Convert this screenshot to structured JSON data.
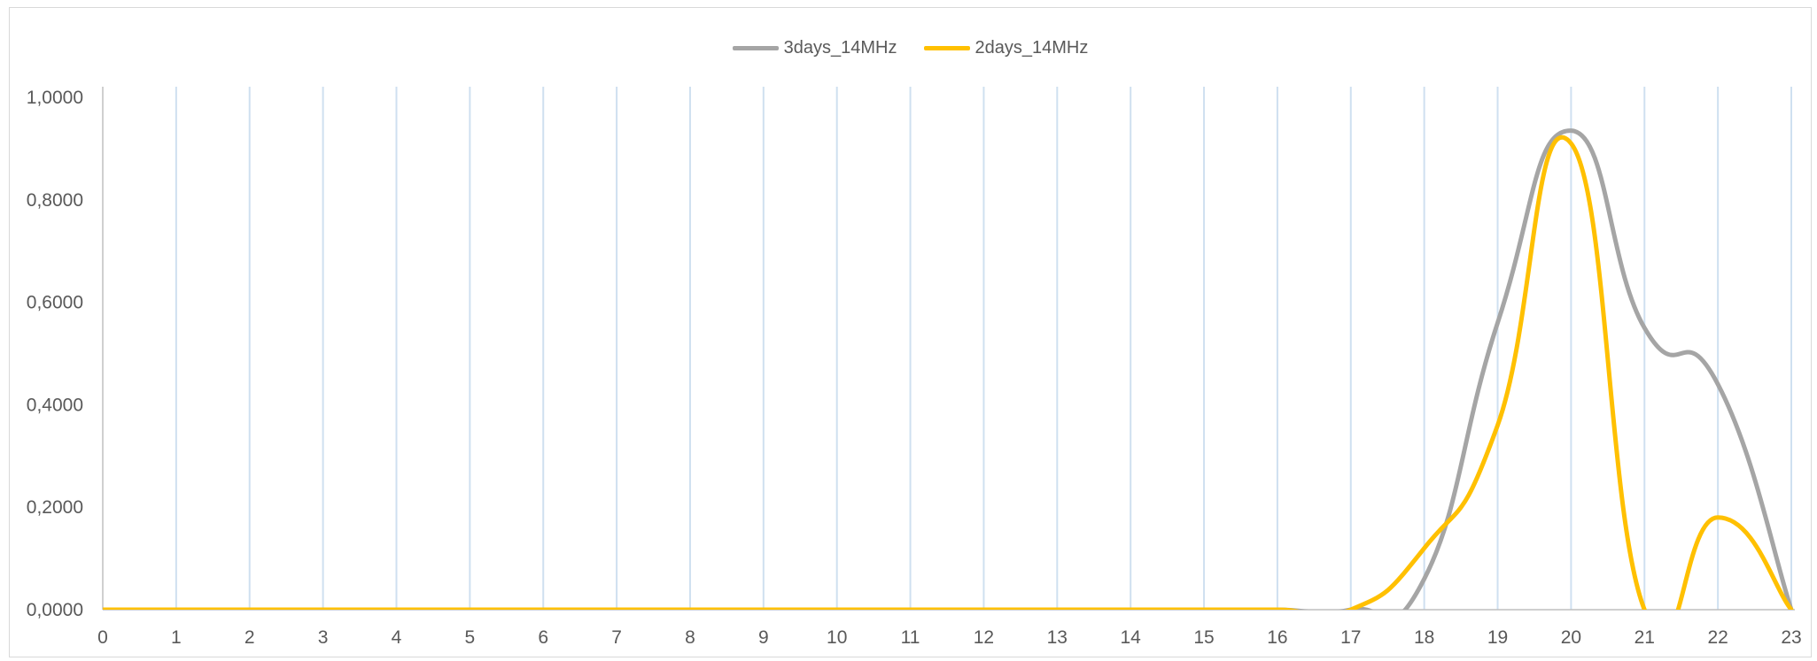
{
  "chart_data": {
    "type": "line",
    "title": "",
    "xlabel": "",
    "ylabel": "",
    "x": [
      0,
      1,
      2,
      3,
      4,
      5,
      6,
      7,
      8,
      9,
      10,
      11,
      12,
      13,
      14,
      15,
      16,
      17,
      18,
      19,
      20,
      21,
      22,
      23
    ],
    "categories": [
      "0",
      "1",
      "2",
      "3",
      "4",
      "5",
      "6",
      "7",
      "8",
      "9",
      "10",
      "11",
      "12",
      "13",
      "14",
      "15",
      "16",
      "17",
      "18",
      "19",
      "20",
      "21",
      "22",
      "23"
    ],
    "ylim": [
      0,
      1
    ],
    "yticks": [
      "0,0000",
      "0,2000",
      "0,4000",
      "0,6000",
      "0,8000",
      "1,0000"
    ],
    "grid": "vertical",
    "legend_position": "top-center",
    "series": [
      {
        "name": "3days_14MHz",
        "color": "#a5a5a5",
        "values": [
          0,
          0,
          0,
          0,
          0,
          0,
          0,
          0,
          0,
          0,
          0,
          0,
          0,
          0,
          0,
          0,
          0,
          0,
          0.06,
          0.56,
          0.935,
          0.55,
          0.44,
          0
        ]
      },
      {
        "name": "2days_14MHz",
        "color": "#ffc000",
        "values": [
          0,
          0,
          0,
          0,
          0,
          0,
          0,
          0,
          0,
          0,
          0,
          0,
          0,
          0,
          0,
          0,
          0,
          0,
          0.12,
          0.36,
          0.91,
          0,
          0.18,
          0
        ]
      }
    ]
  }
}
